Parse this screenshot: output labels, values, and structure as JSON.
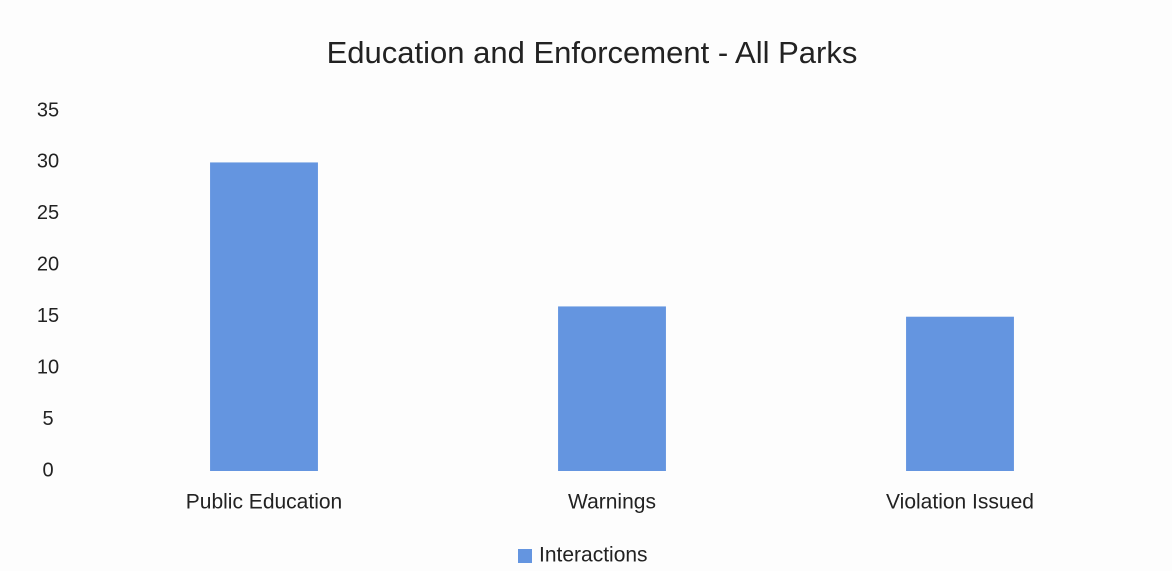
{
  "chart_data": {
    "type": "bar",
    "title": "Education and Enforcement - All Parks",
    "categories": [
      "Public Education",
      "Warnings",
      "Violation Issued"
    ],
    "series": [
      {
        "name": "Interactions",
        "color": "#6495e0",
        "values": [
          30,
          16,
          15
        ]
      }
    ],
    "ylim": [
      0,
      35
    ],
    "yticks": [
      0,
      5,
      10,
      15,
      20,
      25,
      30,
      35
    ],
    "grid": false,
    "legend": "bottom"
  }
}
